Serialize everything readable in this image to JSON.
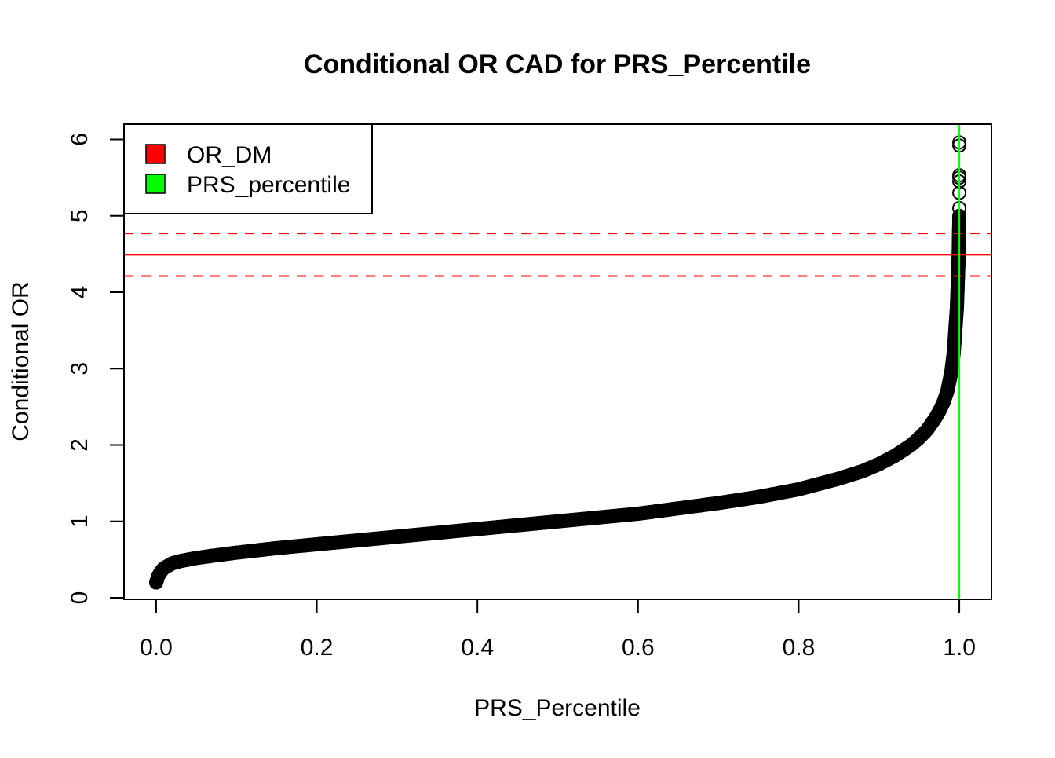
{
  "chart_data": {
    "type": "scatter",
    "title": "Conditional OR CAD for PRS_Percentile",
    "xlabel": "PRS_Percentile",
    "ylabel": "Conditional OR",
    "xlim": [
      -0.04,
      1.04
    ],
    "ylim": [
      -0.02,
      6.2
    ],
    "x_ticks": [
      "0.0",
      "0.2",
      "0.4",
      "0.6",
      "0.8",
      "1.0"
    ],
    "x_tick_values": [
      0,
      0.2,
      0.4,
      0.6,
      0.8,
      1.0
    ],
    "y_ticks": [
      "0",
      "1",
      "2",
      "3",
      "4",
      "5",
      "6"
    ],
    "y_tick_values": [
      0,
      1,
      2,
      3,
      4,
      5,
      6
    ],
    "grid": false,
    "legend_position": "top-left",
    "legend": [
      {
        "label": "OR_DM",
        "color": "#ff0000"
      },
      {
        "label": "PRS_percentile",
        "color": "#00ff00"
      }
    ],
    "reference_lines": {
      "or_dm": {
        "value": 4.49,
        "lower": 4.21,
        "upper": 4.77,
        "color": "#ff0000"
      },
      "prs_percentile": {
        "value": 1.0,
        "color": "#00ff00"
      }
    },
    "series": [
      {
        "marker": "open-circle",
        "color": "#000000",
        "x": [
          0.0,
          0.001,
          0.002,
          0.004,
          0.006,
          0.008,
          0.01,
          0.015,
          0.02,
          0.03,
          0.04,
          0.05,
          0.07,
          0.1,
          0.15,
          0.2,
          0.25,
          0.3,
          0.35,
          0.4,
          0.45,
          0.5,
          0.55,
          0.6,
          0.65,
          0.7,
          0.75,
          0.8,
          0.85,
          0.88,
          0.9,
          0.92,
          0.94,
          0.95,
          0.96,
          0.97,
          0.975,
          0.98,
          0.985,
          0.99,
          0.993,
          0.995,
          0.997,
          0.998,
          0.999,
          0.9995,
          1.0
        ],
        "y": [
          0.2,
          0.23,
          0.27,
          0.31,
          0.34,
          0.37,
          0.39,
          0.42,
          0.45,
          0.48,
          0.5,
          0.52,
          0.55,
          0.59,
          0.65,
          0.7,
          0.75,
          0.8,
          0.85,
          0.9,
          0.95,
          1.0,
          1.05,
          1.1,
          1.17,
          1.24,
          1.32,
          1.42,
          1.56,
          1.66,
          1.75,
          1.86,
          2.0,
          2.09,
          2.2,
          2.35,
          2.44,
          2.55,
          2.7,
          2.95,
          3.2,
          3.5,
          3.8,
          4.1,
          4.4,
          4.7,
          5.0
        ]
      },
      {
        "marker": "open-circle",
        "color": "#000000",
        "x": [
          1.0,
          1.0,
          1.0,
          1.0,
          1.0,
          1.0,
          1.0
        ],
        "y": [
          5.1,
          5.3,
          5.45,
          5.5,
          5.53,
          5.92,
          5.96
        ]
      }
    ]
  }
}
